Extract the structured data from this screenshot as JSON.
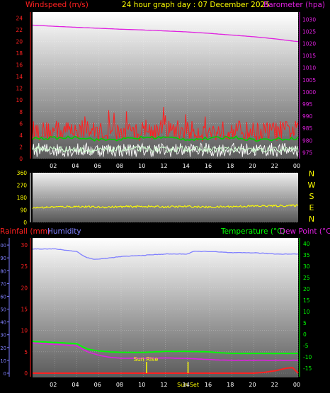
{
  "header": {
    "left_label": "Windspeed (m/s)",
    "center_label": "24 hour graph day : 07 December 2025",
    "right_label": "Barometer (hpa)"
  },
  "colors": {
    "wind_axis": "#ff2020",
    "barometer": "#e020e0",
    "title": "#ffff00",
    "wind_gust": "#ff2020",
    "wind_avg": "#00d000",
    "wind_speed": "#d0ffd0",
    "wind_low": "#ffffff",
    "direction": "#ffff00",
    "rain": "#ff2020",
    "humidity": "#8080ff",
    "temperature": "#00ff00",
    "dewpoint": "#e020e0",
    "sun": "#ffff00",
    "compass": "#ffff00"
  },
  "compass": [
    "N",
    "W",
    "S",
    "E",
    "N"
  ],
  "sun_events": [
    {
      "label": "Sun Rise",
      "time": 10.3
    },
    {
      "label": "Sun Set",
      "time": 14.05
    }
  ],
  "chart_data": [
    {
      "type": "line",
      "name": "wind-barometer",
      "x_ticks": [
        "02",
        "04",
        "06",
        "08",
        "10",
        "12",
        "14",
        "16",
        "18",
        "20",
        "22",
        "00"
      ],
      "xlim": [
        0,
        24
      ],
      "left_axis": {
        "label": "Windspeed (m/s)",
        "ticks": [
          0,
          2,
          4,
          6,
          8,
          10,
          12,
          14,
          16,
          18,
          20,
          22,
          24
        ],
        "ylim": [
          0,
          25
        ]
      },
      "right_axis": {
        "label": "Barometer (hpa)",
        "ticks": [
          975,
          980,
          985,
          990,
          995,
          1000,
          1005,
          1010,
          1015,
          1020,
          1025,
          1030
        ],
        "ylim": [
          972.5,
          1033
        ]
      },
      "series": [
        {
          "axis": "right",
          "x": [
            0,
            2,
            4,
            6,
            8,
            10,
            12,
            14,
            16,
            18,
            20,
            22,
            23,
            24
          ],
          "values": [
            1027.6,
            1027.1,
            1026.7,
            1026.3,
            1025.9,
            1025.6,
            1025.2,
            1024.8,
            1024.2,
            1023.5,
            1022.8,
            1021.9,
            1021.3,
            1020.8
          ]
        },
        {
          "axis": "left",
          "x": [
            0,
            2,
            4,
            6,
            8,
            10,
            12,
            14,
            16,
            18,
            20,
            22,
            24
          ],
          "values": [
            4.8,
            4.6,
            5.0,
            4.6,
            4.4,
            4.7,
            5.0,
            4.8,
            4.5,
            4.9,
            4.6,
            4.7,
            4.9
          ]
        },
        {
          "axis": "left",
          "x": [
            0,
            2,
            4,
            6,
            8,
            10,
            12,
            14,
            16,
            18,
            20,
            22,
            24
          ],
          "values": [
            3.4,
            3.5,
            3.7,
            3.2,
            3.3,
            3.6,
            3.6,
            3.3,
            3.4,
            3.7,
            3.2,
            3.3,
            3.5
          ]
        },
        {
          "axis": "left",
          "x": [
            0,
            2,
            4,
            6,
            8,
            10,
            12,
            14,
            16,
            18,
            20,
            22,
            24
          ],
          "values": [
            1.6,
            1.7,
            1.5,
            1.4,
            1.6,
            1.6,
            1.5,
            1.7,
            1.5,
            1.6,
            1.4,
            1.5,
            1.6
          ]
        }
      ]
    },
    {
      "type": "scatter",
      "name": "wind-direction",
      "y_ticks": [
        0,
        90,
        180,
        270,
        360
      ],
      "ylim": [
        0,
        360
      ],
      "xlim": [
        0,
        24
      ],
      "series": [
        {
          "x": [
            0,
            2,
            4,
            6,
            8,
            10,
            12,
            14,
            16,
            18,
            20,
            22,
            24
          ],
          "values": [
            105,
            112,
            115,
            110,
            113,
            116,
            112,
            115,
            110,
            115,
            118,
            120,
            122
          ]
        }
      ]
    },
    {
      "type": "line",
      "name": "rain-humidity-temperature",
      "x_ticks": [
        "02",
        "04",
        "06",
        "08",
        "10",
        "12",
        "14",
        "16",
        "18",
        "20",
        "22",
        "00"
      ],
      "xlim": [
        0,
        24
      ],
      "left_axis": {
        "ticks": [
          0,
          5,
          10,
          15,
          20,
          25,
          30
        ],
        "ylim": [
          0,
          30.5
        ]
      },
      "left_outer_axis": {
        "ticks": [
          0,
          10,
          20,
          30,
          40,
          50,
          60,
          70,
          80,
          90,
          100
        ],
        "ylim": [
          0,
          101.7
        ]
      },
      "right_axis": {
        "ticks": [
          -15,
          -10,
          -5,
          0,
          5,
          10,
          15,
          20,
          25,
          30,
          35,
          40
        ],
        "ylim": [
          -17.2,
          40.3
        ]
      },
      "labels": {
        "rain": "Rainfall (mm)",
        "humidity": "Humidity",
        "temperature": "Temperature (°C)",
        "dewpoint": "Dew Point (°C)"
      },
      "series": [
        {
          "axis": "left_outer",
          "x": [
            0,
            1,
            2,
            3,
            4,
            4.5,
            5,
            5.5,
            6,
            7,
            8,
            10,
            12,
            14,
            14.5,
            16,
            18,
            20,
            22,
            24
          ],
          "values": [
            97,
            97,
            97,
            96,
            95,
            92,
            90,
            89,
            89,
            90,
            91,
            92,
            93,
            93,
            95,
            95,
            94,
            94,
            93,
            93
          ]
        },
        {
          "axis": "right",
          "x": [
            0,
            1,
            2,
            3,
            4,
            4.5,
            5,
            6,
            7,
            8,
            10,
            12,
            14,
            16,
            17,
            18,
            20,
            22,
            24
          ],
          "values": [
            -3.2,
            -3.4,
            -3.6,
            -3.9,
            -4.2,
            -5.5,
            -6.6,
            -7.4,
            -7.8,
            -8.0,
            -8.0,
            -7.6,
            -7.6,
            -7.8,
            -8.2,
            -8.5,
            -8.5,
            -8.5,
            -8.5
          ]
        },
        {
          "axis": "right",
          "x": [
            0,
            1,
            2,
            3,
            4,
            4.5,
            5,
            6,
            7,
            8,
            10,
            12,
            14,
            16,
            17,
            18,
            20,
            22,
            24
          ],
          "values": [
            -3.9,
            -4.2,
            -4.5,
            -4.8,
            -5.2,
            -6.6,
            -7.8,
            -9.3,
            -10.2,
            -10.6,
            -10.6,
            -10.5,
            -10.7,
            -11.2,
            -11.4,
            -11.5,
            -11.5,
            -11.5,
            -11.5
          ]
        },
        {
          "axis": "left",
          "x": [
            0,
            20,
            21,
            22,
            23,
            23.5,
            24
          ],
          "values": [
            0.0,
            0.0,
            0.2,
            0.6,
            1.2,
            1.3,
            0.0
          ]
        }
      ]
    }
  ]
}
